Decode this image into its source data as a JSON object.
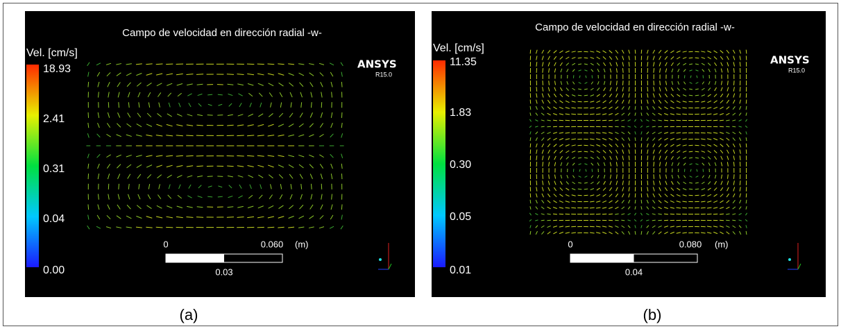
{
  "panels": [
    {
      "title": "Campo de velocidad en dirección radial -w-",
      "legend_label": "Vel. [cm/s]",
      "legend_ticks": [
        "18.93",
        "2.41",
        "0.31",
        "0.04",
        "0.00"
      ],
      "logo": "ANSYS",
      "version": "R15.0",
      "scale_start": "0",
      "scale_end": "0.060",
      "scale_unit": "(m)",
      "scale_mid": "0.03",
      "caption": "(a)"
    },
    {
      "title": "Campo de velocidad en dirección radial -w-",
      "legend_label": "Vel. [cm/s]",
      "legend_ticks": [
        "11.35",
        "1.83",
        "0.30",
        "0.05",
        "0.01"
      ],
      "logo": "ANSYS",
      "version": "R15.0",
      "scale_start": "0",
      "scale_end": "0.080",
      "scale_unit": "(m)",
      "scale_mid": "0.04",
      "caption": "(b)"
    }
  ]
}
